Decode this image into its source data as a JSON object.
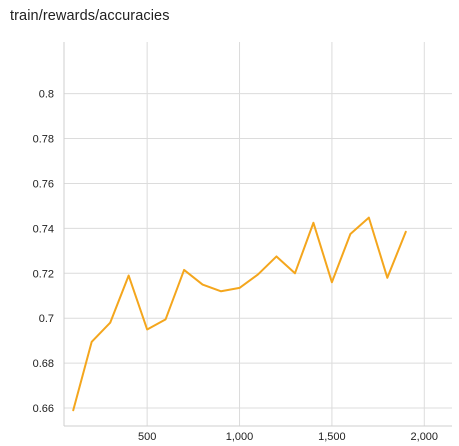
{
  "chart_data": {
    "type": "line",
    "title": "train/rewards/accuracies",
    "xlabel": "",
    "ylabel": "",
    "xlim": [
      50,
      2150
    ],
    "ylim": [
      0.652,
      0.823
    ],
    "x_ticks": [
      500,
      1000,
      1500,
      2000
    ],
    "x_tick_labels": [
      "500",
      "1,000",
      "1,500",
      "2,000"
    ],
    "y_ticks": [
      0.66,
      0.68,
      0.7,
      0.72,
      0.74,
      0.76,
      0.78,
      0.8
    ],
    "y_tick_labels": [
      "0.66",
      "0.68",
      "0.7",
      "0.72",
      "0.74",
      "0.76",
      "0.78",
      "0.8"
    ],
    "grid": true,
    "series": [
      {
        "color": "#f4a61d",
        "x": [
          100,
          200,
          300,
          400,
          500,
          600,
          700,
          800,
          900,
          1000,
          1100,
          1200,
          1300,
          1400,
          1500,
          1600,
          1700,
          1800,
          1900
        ],
        "y": [
          0.659,
          0.6895,
          0.698,
          0.719,
          0.695,
          0.6995,
          0.7215,
          0.715,
          0.712,
          0.7135,
          0.7195,
          0.7275,
          0.72,
          0.7425,
          0.716,
          0.7375,
          0.7448,
          0.718,
          0.7385
        ]
      }
    ]
  }
}
